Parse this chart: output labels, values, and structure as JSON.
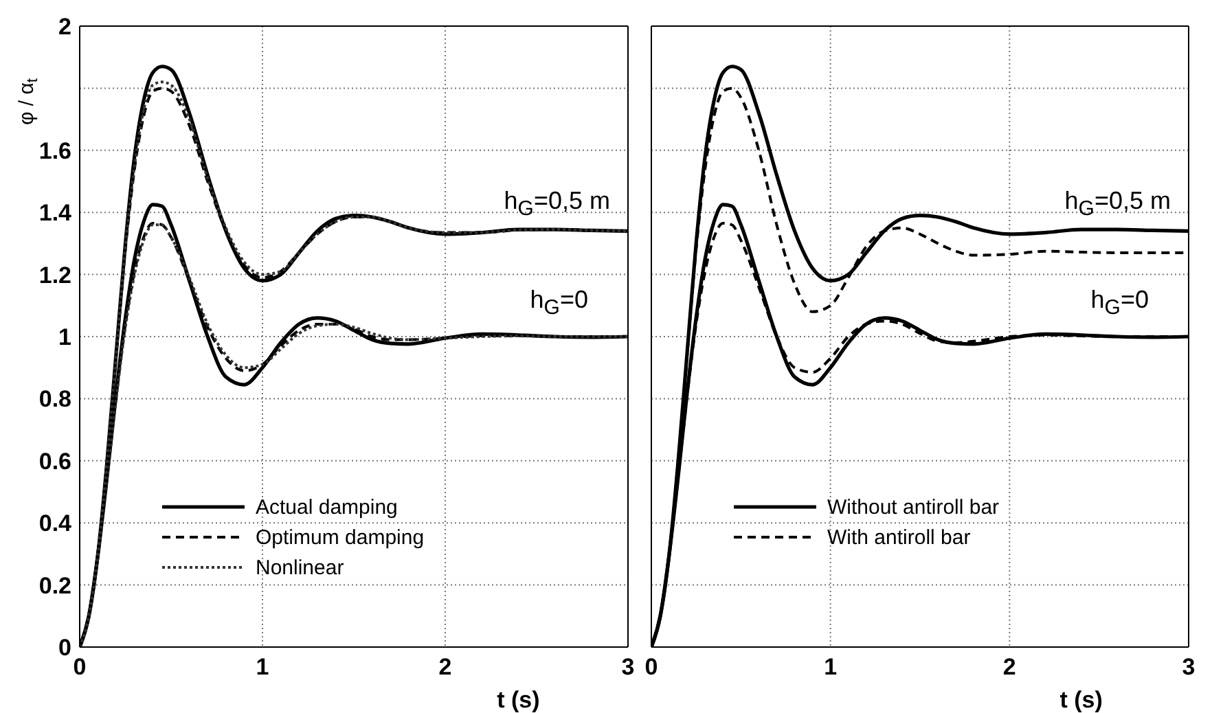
{
  "chart_data": [
    {
      "type": "line",
      "xlabel": "t (s)",
      "ylabel": "φ / α$_{t}$",
      "x": [
        0,
        0.05,
        0.1,
        0.15,
        0.2,
        0.25,
        0.3,
        0.35,
        0.4,
        0.45,
        0.5,
        0.6,
        0.7,
        0.8,
        0.9,
        1.0,
        1.1,
        1.2,
        1.3,
        1.4,
        1.5,
        1.6,
        1.7,
        1.8,
        2.0,
        2.2,
        2.4,
        2.6,
        2.8,
        3.0
      ],
      "xlim": [
        0,
        3
      ],
      "xticks": [
        0,
        1,
        2,
        3
      ],
      "ylim": [
        0,
        2
      ],
      "yticks": [
        0,
        0.2,
        0.4,
        0.6,
        0.8,
        1,
        1.2,
        1.4,
        1.6,
        {
          "value": 1.8,
          "label": null
        },
        2
      ],
      "grid": true,
      "legend": "bottom",
      "series": [
        {
          "name": "Actual damping",
          "color": "#000000",
          "line_style": "solid",
          "values": [
            0,
            0.1,
            0.3,
            0.55,
            0.82,
            1.06,
            1.25,
            1.37,
            1.425,
            1.42,
            1.36,
            1.18,
            1.0,
            0.87,
            0.845,
            0.9,
            0.98,
            1.04,
            1.06,
            1.05,
            1.02,
            0.99,
            0.978,
            0.976,
            0.995,
            1.008,
            1.005,
            1.0,
            0.998,
            1.0
          ]
        },
        {
          "name": "Optimum damping",
          "color": "#000000",
          "line_style": "dashed",
          "values": [
            0,
            0.1,
            0.3,
            0.55,
            0.81,
            1.04,
            1.21,
            1.32,
            1.365,
            1.36,
            1.32,
            1.18,
            1.03,
            0.93,
            0.89,
            0.91,
            0.97,
            1.02,
            1.04,
            1.04,
            1.025,
            1.0,
            0.99,
            0.99,
            0.995,
            1.003,
            1.003,
            1.0,
            1.0,
            1.0
          ]
        },
        {
          "name": "Nonlinear",
          "color": "#333333",
          "line_style": "dotted",
          "values": [
            0,
            0.1,
            0.29,
            0.54,
            0.8,
            1.03,
            1.2,
            1.31,
            1.36,
            1.36,
            1.32,
            1.19,
            1.04,
            0.94,
            0.9,
            0.91,
            0.96,
            1.01,
            1.035,
            1.04,
            1.03,
            1.01,
            0.995,
            0.99,
            0.995,
            1.0,
            1.002,
            1.0,
            1.0,
            1.0
          ]
        },
        {
          "color": "#000000",
          "line_style": "solid",
          "values": [
            0,
            0.1,
            0.3,
            0.6,
            0.95,
            1.3,
            1.58,
            1.76,
            1.85,
            1.87,
            1.86,
            1.72,
            1.52,
            1.34,
            1.22,
            1.18,
            1.2,
            1.27,
            1.34,
            1.38,
            1.39,
            1.385,
            1.37,
            1.35,
            1.33,
            1.335,
            1.345,
            1.345,
            1.342,
            1.34
          ]
        },
        {
          "color": "#000000",
          "line_style": "dashed",
          "values": [
            0,
            0.1,
            0.3,
            0.6,
            0.94,
            1.28,
            1.54,
            1.71,
            1.79,
            1.8,
            1.79,
            1.68,
            1.5,
            1.34,
            1.23,
            1.19,
            1.21,
            1.27,
            1.33,
            1.37,
            1.385,
            1.385,
            1.37,
            1.35,
            1.335,
            1.335,
            1.343,
            1.345,
            1.342,
            1.34
          ]
        },
        {
          "color": "#333333",
          "line_style": "dotted",
          "values": [
            0,
            0.1,
            0.3,
            0.6,
            0.94,
            1.29,
            1.55,
            1.73,
            1.81,
            1.82,
            1.81,
            1.7,
            1.51,
            1.35,
            1.24,
            1.2,
            1.21,
            1.27,
            1.33,
            1.37,
            1.385,
            1.385,
            1.37,
            1.35,
            1.335,
            1.335,
            1.343,
            1.345,
            1.342,
            1.34
          ]
        }
      ],
      "annotations": [
        "h$_{G}$=0,5 m",
        "h$_{G}$=0"
      ]
    },
    {
      "type": "line",
      "xlabel": "t (s)",
      "x": [
        0,
        0.05,
        0.1,
        0.15,
        0.2,
        0.25,
        0.3,
        0.35,
        0.4,
        0.45,
        0.5,
        0.6,
        0.7,
        0.8,
        0.9,
        1.0,
        1.1,
        1.2,
        1.3,
        1.4,
        1.5,
        1.6,
        1.7,
        1.8,
        2.0,
        2.2,
        2.4,
        2.6,
        2.8,
        3.0
      ],
      "xlim": [
        0,
        3
      ],
      "xticks": [
        0,
        1,
        2,
        3
      ],
      "ylim": [
        0,
        2
      ],
      "yticks": [
        0,
        0.2,
        0.4,
        0.6,
        0.8,
        1,
        1.2,
        1.4,
        1.6,
        1.8,
        2
      ],
      "tick_labels": "x",
      "grid": true,
      "legend": "bottom",
      "series": [
        {
          "name": "Without antiroll bar",
          "color": "#000000",
          "line_style": "solid",
          "values": [
            0,
            0.1,
            0.3,
            0.55,
            0.82,
            1.06,
            1.25,
            1.37,
            1.425,
            1.42,
            1.36,
            1.18,
            1.0,
            0.87,
            0.845,
            0.9,
            0.98,
            1.04,
            1.06,
            1.05,
            1.02,
            0.99,
            0.978,
            0.976,
            0.995,
            1.008,
            1.005,
            1.0,
            0.998,
            1.0
          ]
        },
        {
          "name": "With antiroll bar",
          "color": "#000000",
          "line_style": "dashed",
          "values": [
            0,
            0.1,
            0.3,
            0.55,
            0.81,
            1.04,
            1.21,
            1.32,
            1.365,
            1.36,
            1.31,
            1.16,
            1.0,
            0.9,
            0.885,
            0.93,
            1.0,
            1.04,
            1.05,
            1.04,
            1.01,
            0.985,
            0.98,
            0.985,
            1.0,
            1.005,
            1.002,
            1.0,
            1.0,
            1.0
          ]
        },
        {
          "color": "#000000",
          "line_style": "solid",
          "values": [
            0,
            0.1,
            0.3,
            0.6,
            0.95,
            1.3,
            1.58,
            1.76,
            1.85,
            1.87,
            1.86,
            1.72,
            1.52,
            1.34,
            1.22,
            1.18,
            1.2,
            1.27,
            1.34,
            1.38,
            1.39,
            1.385,
            1.37,
            1.35,
            1.33,
            1.335,
            1.345,
            1.345,
            1.342,
            1.34
          ]
        },
        {
          "color": "#000000",
          "line_style": "dashed",
          "values": [
            0,
            0.1,
            0.3,
            0.6,
            0.94,
            1.28,
            1.54,
            1.71,
            1.79,
            1.8,
            1.77,
            1.6,
            1.36,
            1.17,
            1.08,
            1.1,
            1.19,
            1.29,
            1.34,
            1.35,
            1.33,
            1.3,
            1.275,
            1.262,
            1.265,
            1.275,
            1.272,
            1.27,
            1.27,
            1.27
          ]
        }
      ],
      "annotations": [
        "h$_{G}$=0,5 m",
        "h$_{G}$=0"
      ]
    }
  ]
}
